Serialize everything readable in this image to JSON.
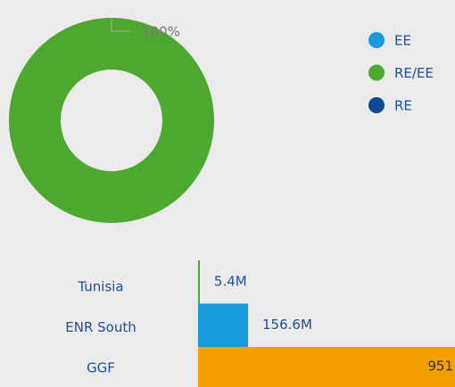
{
  "chart_data": [
    {
      "type": "donut",
      "series": [
        {
          "name": "EE",
          "color": "#1a9bdb",
          "values": [
            0
          ]
        },
        {
          "name": "RE/EE",
          "color": "#4ea72e",
          "values": [
            100
          ],
          "value_labels": [
            "100%"
          ]
        },
        {
          "name": "RE",
          "color": "#0b4a94",
          "values": [
            0
          ]
        }
      ]
    },
    {
      "type": "hbar",
      "categories": [
        "Tunisia",
        "ENR South",
        "GGF"
      ],
      "values": [
        5.4,
        156.6,
        951
      ],
      "value_labels": [
        "5.4M",
        "156.6M",
        "951"
      ],
      "colors": [
        "#4ea72e",
        "#1a9bdb",
        "#f5a000"
      ],
      "xlim": [
        0,
        805
      ]
    }
  ]
}
